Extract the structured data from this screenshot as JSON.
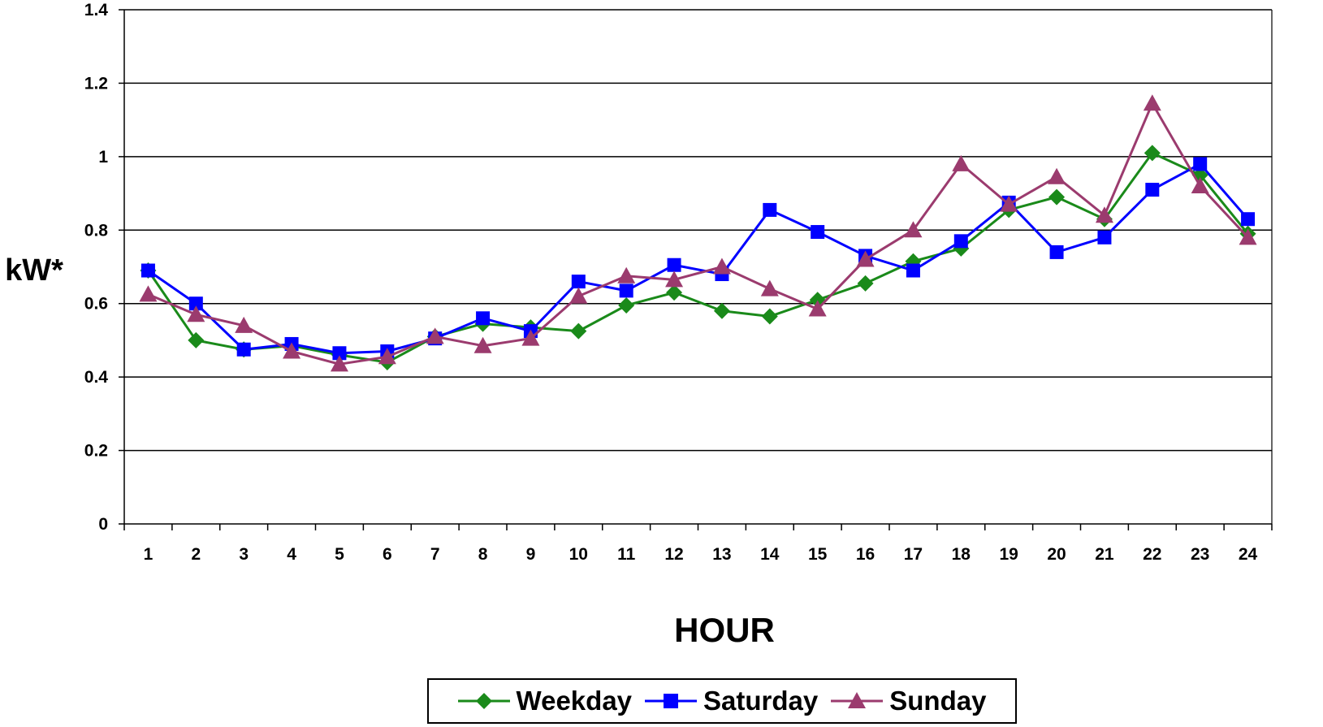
{
  "chart_data": {
    "type": "line",
    "title": "",
    "xlabel": "HOUR",
    "ylabel": "kW*",
    "ylim": [
      0,
      1.4
    ],
    "yticks": [
      "0",
      "0.2",
      "0.4",
      "0.6",
      "0.8",
      "1",
      "1.2",
      "1.4"
    ],
    "categories": [
      "1",
      "2",
      "3",
      "4",
      "5",
      "6",
      "7",
      "8",
      "9",
      "10",
      "11",
      "12",
      "13",
      "14",
      "15",
      "16",
      "17",
      "18",
      "19",
      "20",
      "21",
      "22",
      "23",
      "24"
    ],
    "grid": "horizontal",
    "legend_position": "bottom",
    "series": [
      {
        "name": "Weekday",
        "color": "#1a8a1a",
        "marker": "diamond",
        "values": [
          0.69,
          0.5,
          0.475,
          0.485,
          0.46,
          0.44,
          0.51,
          0.545,
          0.535,
          0.525,
          0.595,
          0.63,
          0.58,
          0.565,
          0.61,
          0.655,
          0.715,
          0.75,
          0.855,
          0.89,
          0.83,
          1.01,
          0.95,
          0.79
        ]
      },
      {
        "name": "Saturday",
        "color": "#0000ff",
        "marker": "square",
        "values": [
          0.69,
          0.6,
          0.475,
          0.49,
          0.465,
          0.47,
          0.505,
          0.56,
          0.525,
          0.66,
          0.635,
          0.705,
          0.68,
          0.855,
          0.795,
          0.73,
          0.69,
          0.77,
          0.875,
          0.74,
          0.78,
          0.91,
          0.98,
          0.83
        ]
      },
      {
        "name": "Sunday",
        "color": "#9b3b6e",
        "marker": "triangle",
        "values": [
          0.625,
          0.57,
          0.54,
          0.47,
          0.435,
          0.455,
          0.51,
          0.485,
          0.505,
          0.62,
          0.675,
          0.665,
          0.7,
          0.64,
          0.585,
          0.72,
          0.8,
          0.98,
          0.87,
          0.945,
          0.84,
          1.145,
          0.92,
          0.78
        ]
      }
    ]
  }
}
